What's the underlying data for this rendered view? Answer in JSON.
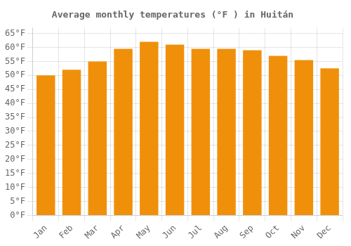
{
  "chart_data": {
    "type": "bar",
    "title": "Average monthly temperatures (°F ) in Huitán",
    "categories": [
      "Jan",
      "Feb",
      "Mar",
      "Apr",
      "May",
      "Jun",
      "Jul",
      "Aug",
      "Sep",
      "Oct",
      "Nov",
      "Dec"
    ],
    "values": [
      50.0,
      52.0,
      55.0,
      59.5,
      62.0,
      61.0,
      59.5,
      59.5,
      59.0,
      57.0,
      55.5,
      52.5
    ],
    "color": "#F0900A",
    "ylim": [
      0,
      67
    ],
    "yticks": [
      {
        "value": 0,
        "label": "0°F"
      },
      {
        "value": 5,
        "label": "5°F"
      },
      {
        "value": 10,
        "label": "10°F"
      },
      {
        "value": 15,
        "label": "15°F"
      },
      {
        "value": 20,
        "label": "20°F"
      },
      {
        "value": 25,
        "label": "25°F"
      },
      {
        "value": 30,
        "label": "30°F"
      },
      {
        "value": 35,
        "label": "35°F"
      },
      {
        "value": 40,
        "label": "40°F"
      },
      {
        "value": 45,
        "label": "45°F"
      },
      {
        "value": 50,
        "label": "50°F"
      },
      {
        "value": 55,
        "label": "55°F"
      },
      {
        "value": 60,
        "label": "60°F"
      },
      {
        "value": 65,
        "label": "65°F"
      }
    ],
    "grid": true
  }
}
